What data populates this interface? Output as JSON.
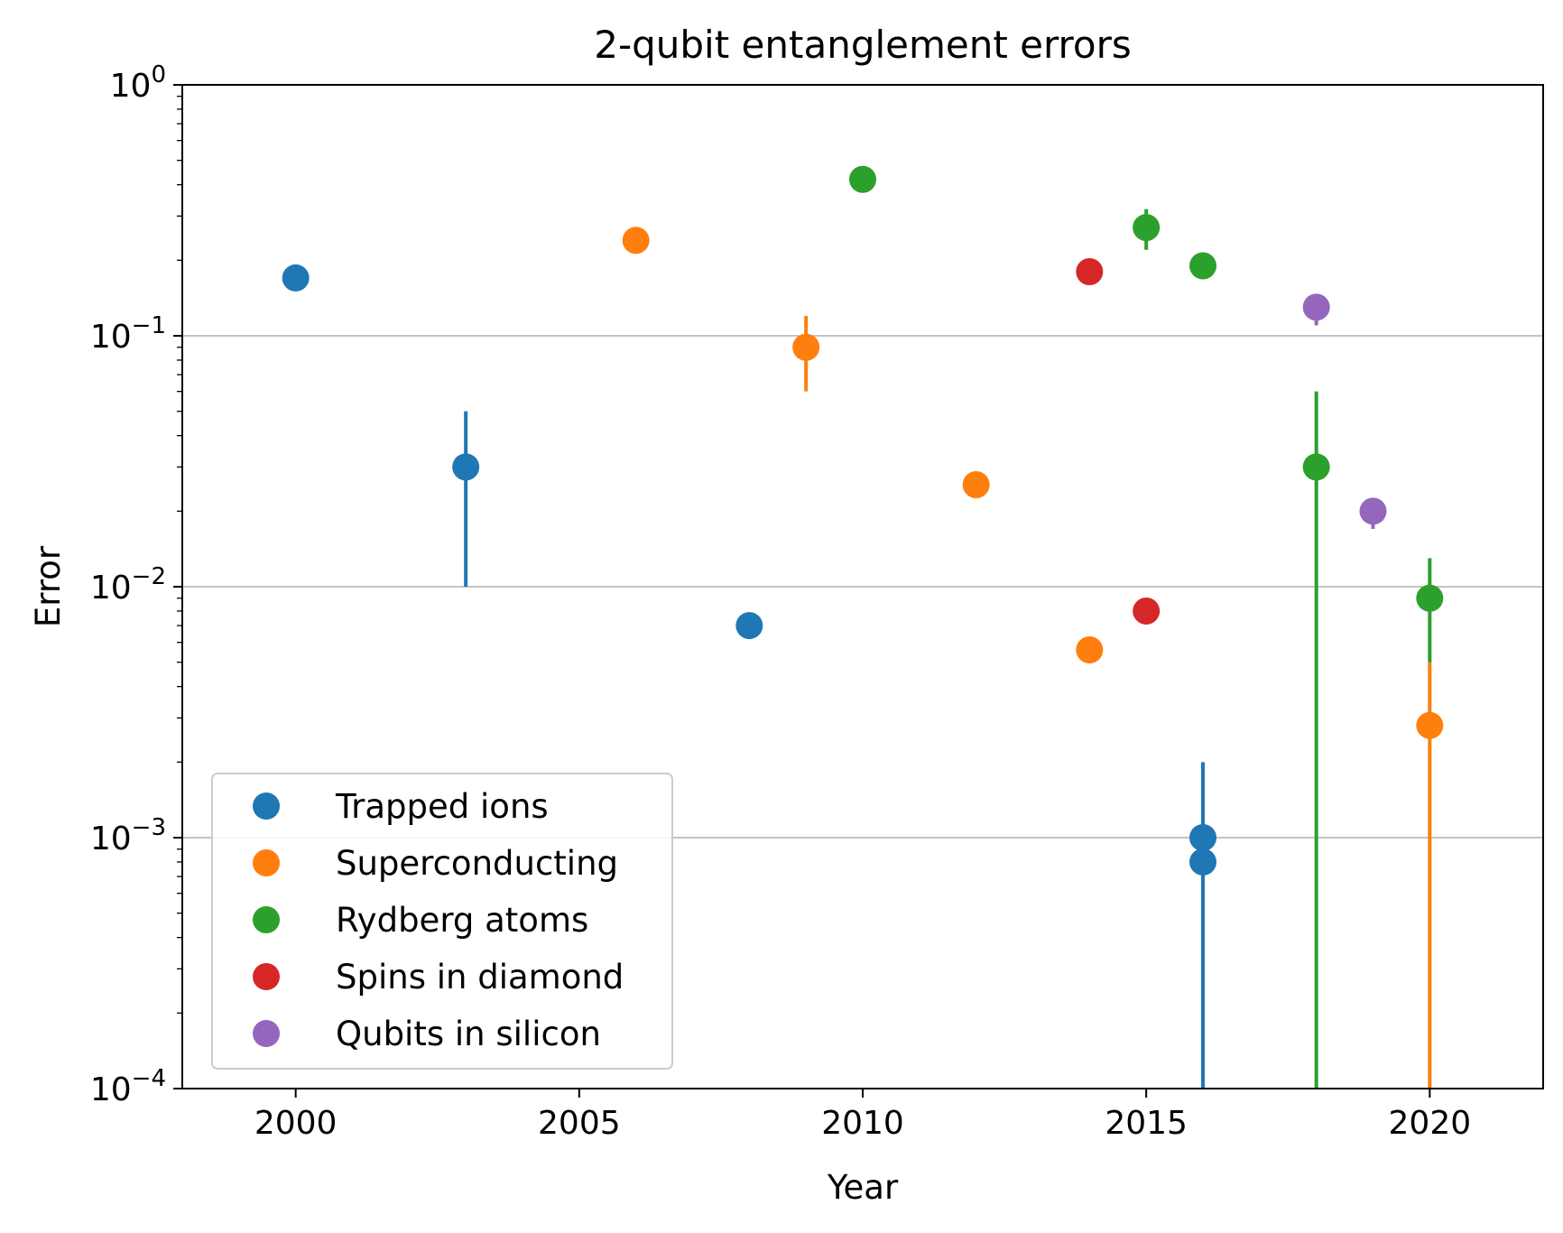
{
  "chart_data": {
    "type": "scatter",
    "title": "2-qubit entanglement errors",
    "xlabel": "Year",
    "ylabel": "Error",
    "xlim": [
      1998,
      2022
    ],
    "ylim": [
      0.0001,
      1
    ],
    "yscale": "log",
    "grid": "y-major",
    "legend_position": "lower-left",
    "x_ticks": [
      2000,
      2005,
      2010,
      2015,
      2020
    ],
    "x_tick_labels": [
      "2000",
      "2005",
      "2010",
      "2015",
      "2020"
    ],
    "y_ticks": [
      0.0001,
      0.001,
      0.01,
      0.1,
      1
    ],
    "y_tick_labels": [
      {
        "base": "10",
        "exp": "−4"
      },
      {
        "base": "10",
        "exp": "−3"
      },
      {
        "base": "10",
        "exp": "−2"
      },
      {
        "base": "10",
        "exp": "−1"
      },
      {
        "base": "10",
        "exp": "0"
      }
    ],
    "series": [
      {
        "name": "Trapped ions",
        "color": "#1f77b4",
        "points": [
          {
            "x": 2000,
            "y": 0.17
          },
          {
            "x": 2003,
            "y": 0.03,
            "err_low": 0.01,
            "err_high": 0.05
          },
          {
            "x": 2008,
            "y": 0.007,
            "err_low": 0.0062,
            "err_high": 0.0075
          },
          {
            "x": 2016,
            "y": 0.001,
            "err_low": 0.0004,
            "err_high": 0.002
          },
          {
            "x": 2016,
            "y": 0.0008,
            "err_low": 0.0001,
            "err_high": 0.001
          }
        ]
      },
      {
        "name": "Superconducting",
        "color": "#ff7f0e",
        "points": [
          {
            "x": 2006,
            "y": 0.24
          },
          {
            "x": 2009,
            "y": 0.09,
            "err_low": 0.06,
            "err_high": 0.12
          },
          {
            "x": 2012,
            "y": 0.0255
          },
          {
            "x": 2014,
            "y": 0.0056
          },
          {
            "x": 2020,
            "y": 0.0028,
            "err_low": 0.0001,
            "err_high": 0.005
          }
        ]
      },
      {
        "name": "Rydberg atoms",
        "color": "#2ca02c",
        "points": [
          {
            "x": 2010,
            "y": 0.42
          },
          {
            "x": 2015,
            "y": 0.27,
            "err_low": 0.22,
            "err_high": 0.32
          },
          {
            "x": 2016,
            "y": 0.19
          },
          {
            "x": 2018,
            "y": 0.03,
            "err_low": 0.0001,
            "err_high": 0.06
          },
          {
            "x": 2020,
            "y": 0.009,
            "err_low": 0.005,
            "err_high": 0.013
          }
        ]
      },
      {
        "name": "Spins in diamond",
        "color": "#d62728",
        "points": [
          {
            "x": 2014,
            "y": 0.18
          },
          {
            "x": 2015,
            "y": 0.008
          }
        ]
      },
      {
        "name": "Qubits in silicon",
        "color": "#9467bd",
        "points": [
          {
            "x": 2018,
            "y": 0.13,
            "err_low": 0.11,
            "err_high": 0.14
          },
          {
            "x": 2019,
            "y": 0.02,
            "err_low": 0.017,
            "err_high": 0.022
          }
        ]
      }
    ]
  }
}
